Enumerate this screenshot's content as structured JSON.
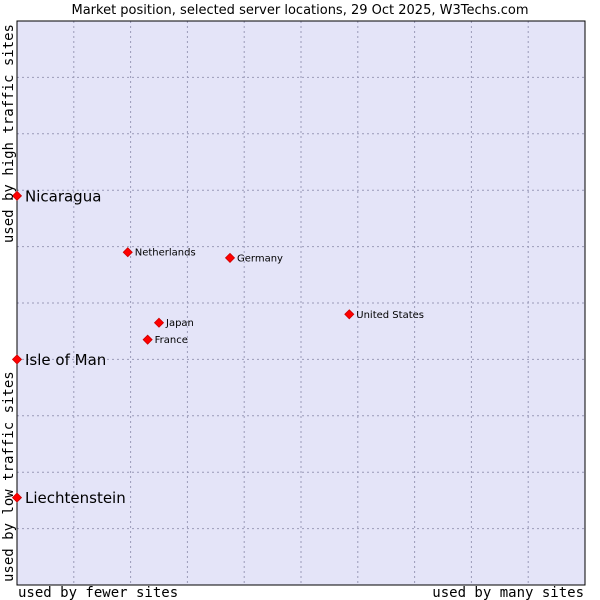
{
  "chart_data": {
    "type": "scatter",
    "title": "Market position, selected server locations, 29 Oct 2025, W3Techs.com",
    "xlabel": "used by fewer sites",
    "xlabel_right": "used by many sites",
    "ylabel_low": "used by low traffic sites",
    "ylabel_high": "used by high traffic sites",
    "xlim": [
      0,
      100
    ],
    "ylim": [
      0,
      100
    ],
    "grid": true,
    "series": [
      {
        "name": "server locations",
        "points": [
          {
            "label": "Nicaragua",
            "x": 0,
            "y": 69,
            "emphasis": true
          },
          {
            "label": "Isle of Man",
            "x": 0,
            "y": 40,
            "emphasis": true
          },
          {
            "label": "Liechtenstein",
            "x": 0,
            "y": 15.5,
            "emphasis": true
          },
          {
            "label": "Netherlands",
            "x": 19.5,
            "y": 59,
            "emphasis": false
          },
          {
            "label": "Germany",
            "x": 37.5,
            "y": 58,
            "emphasis": false
          },
          {
            "label": "United States",
            "x": 58.5,
            "y": 48,
            "emphasis": false
          },
          {
            "label": "Japan",
            "x": 25,
            "y": 46.5,
            "emphasis": false
          },
          {
            "label": "France",
            "x": 23,
            "y": 43.5,
            "emphasis": false
          }
        ]
      }
    ],
    "colors": {
      "plot_background": "#e4e4f8",
      "marker": "#ff0000",
      "marker_border": "#cc0000"
    }
  }
}
